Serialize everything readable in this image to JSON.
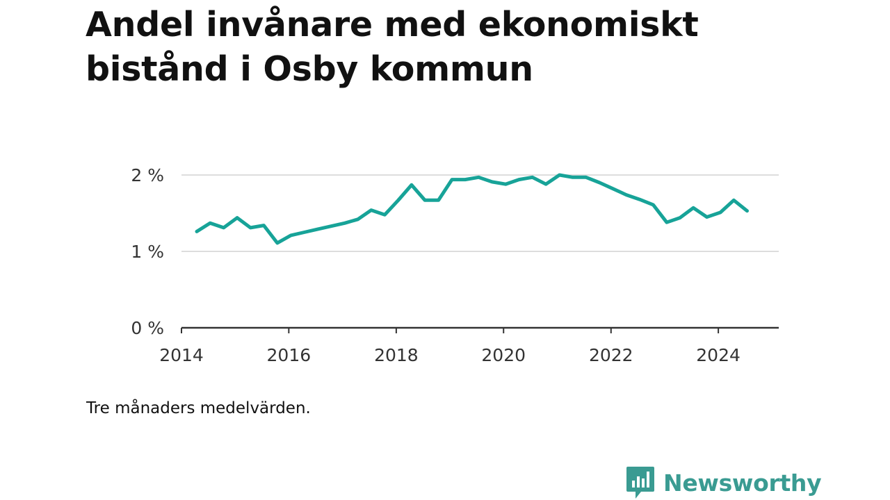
{
  "header": {
    "title": "Andel invånare med ekonomiskt bistånd i Osby kommun"
  },
  "footer": {
    "note": "Tre månaders medelvärden.",
    "brand": "Newsworthy",
    "brand_icon": "chart-bubble-icon"
  },
  "colors": {
    "line": "#17a398",
    "grid": "#dddddd",
    "axis": "#333333",
    "brand": "#3a9b92"
  },
  "chart_data": {
    "type": "line",
    "title": "Andel invånare med ekonomiskt bistånd i Osby kommun",
    "xlabel": "",
    "ylabel": "",
    "ylim": [
      0,
      2.2
    ],
    "y_ticks": [
      0,
      1,
      2
    ],
    "y_tick_labels": [
      "0 %",
      "1 %",
      "2 %"
    ],
    "xlim": [
      "2014-01-01",
      "2025-02-15"
    ],
    "x_ticks": [
      "2014-01-01",
      "2016-01-01",
      "2018-01-01",
      "2020-01-01",
      "2022-01-01",
      "2024-01-01"
    ],
    "x_tick_labels": [
      "2014",
      "2016",
      "2018",
      "2020",
      "2022",
      "2024"
    ],
    "grid": true,
    "series": [
      {
        "x": [
          "2014-04-15",
          "2014-07-15",
          "2014-10-15",
          "2015-01-15",
          "2015-04-15",
          "2015-07-15",
          "2015-10-15",
          "2016-01-15",
          "2016-04-15",
          "2016-07-15",
          "2016-10-15",
          "2017-01-15",
          "2017-04-15",
          "2017-07-15",
          "2017-10-15",
          "2018-01-15",
          "2018-04-15",
          "2018-07-15",
          "2018-10-15",
          "2019-01-15",
          "2019-04-15",
          "2019-07-15",
          "2019-10-15",
          "2020-01-15",
          "2020-04-15",
          "2020-07-15",
          "2020-10-15",
          "2021-01-15",
          "2021-04-15",
          "2021-07-15",
          "2021-10-15",
          "2022-01-15",
          "2022-04-15",
          "2022-07-15",
          "2022-10-15",
          "2023-01-15",
          "2023-04-15",
          "2023-07-15",
          "2023-10-15",
          "2024-01-15",
          "2024-04-15",
          "2024-07-15"
        ],
        "values": [
          1.26,
          1.37,
          1.31,
          1.44,
          1.31,
          1.34,
          1.11,
          1.21,
          1.25,
          1.29,
          1.33,
          1.37,
          1.42,
          1.54,
          1.48,
          1.67,
          1.87,
          1.67,
          1.67,
          1.94,
          1.94,
          1.97,
          1.91,
          1.88,
          1.94,
          1.97,
          1.88,
          2.0,
          1.97,
          1.97,
          1.9,
          1.82,
          1.74,
          1.68,
          1.61,
          1.38,
          1.44,
          1.57,
          1.45,
          1.51,
          1.67,
          1.53
        ]
      }
    ]
  }
}
